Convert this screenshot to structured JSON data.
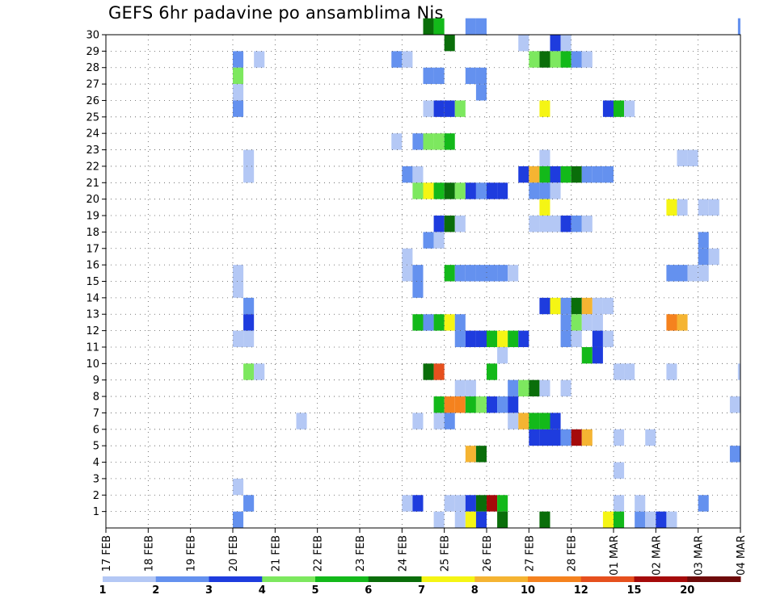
{
  "chart_data": {
    "type": "heatmap",
    "title": "GEFS 6hr padavine po ansamblima Nis",
    "xlabel": "",
    "ylabel": "",
    "x_tick_labels": [
      "17 FEB",
      "18 FEB",
      "19 FEB",
      "20 FEB",
      "21 FEB",
      "22 FEB",
      "23 FEB",
      "24 FEB",
      "25 FEB",
      "26 FEB",
      "27 FEB",
      "28 FEB",
      "01 MAR",
      "02 MAR",
      "03 MAR",
      "04 MAR"
    ],
    "y_tick_labels": [
      "1",
      "2",
      "3",
      "4",
      "5",
      "6",
      "7",
      "8",
      "9",
      "10",
      "11",
      "12",
      "13",
      "14",
      "15",
      "16",
      "17",
      "18",
      "19",
      "20",
      "21",
      "22",
      "23",
      "24",
      "25",
      "26",
      "27",
      "28",
      "29",
      "30"
    ],
    "x_range_days": [
      0,
      15
    ],
    "y_range": [
      0,
      30
    ],
    "grid": true,
    "legend_position": "bottom",
    "colorbar": {
      "labels": [
        "1",
        "2",
        "3",
        "4",
        "5",
        "6",
        "7",
        "8",
        "10",
        "12",
        "15",
        "20"
      ],
      "colors": [
        "#b4c8f5",
        "#6491ef",
        "#1e3cde",
        "#7de85f",
        "#13b91a",
        "#0a6e0a",
        "#f5f514",
        "#f5b432",
        "#f5821e",
        "#e6501e",
        "#a50a0a",
        "#6e0a0a"
      ]
    },
    "cell_width_days": 0.25,
    "cells": [
      [
        30,
        7.5,
        5
      ],
      [
        30,
        7.75,
        4
      ],
      [
        30,
        8.5,
        1
      ],
      [
        30,
        8.75,
        1
      ],
      [
        30,
        14.94,
        1
      ],
      [
        29,
        8.0,
        5
      ],
      [
        29,
        9.75,
        0
      ],
      [
        29,
        10.5,
        2
      ],
      [
        29,
        10.75,
        0
      ],
      [
        28,
        3.0,
        1
      ],
      [
        28,
        3.5,
        0
      ],
      [
        28,
        6.75,
        1
      ],
      [
        28,
        7.0,
        0
      ],
      [
        28,
        10.0,
        3
      ],
      [
        28,
        10.25,
        5
      ],
      [
        28,
        10.5,
        3
      ],
      [
        28,
        10.75,
        4
      ],
      [
        28,
        11.0,
        1
      ],
      [
        28,
        11.25,
        0
      ],
      [
        27,
        3.0,
        3
      ],
      [
        27,
        7.5,
        1
      ],
      [
        27,
        7.75,
        1
      ],
      [
        27,
        8.5,
        1
      ],
      [
        27,
        8.75,
        1
      ],
      [
        26,
        3.0,
        0
      ],
      [
        26,
        8.75,
        1
      ],
      [
        25,
        3.0,
        1
      ],
      [
        25,
        7.5,
        0
      ],
      [
        25,
        7.75,
        2
      ],
      [
        25,
        8.0,
        2
      ],
      [
        25,
        8.25,
        3
      ],
      [
        25,
        10.25,
        6
      ],
      [
        25,
        11.75,
        2
      ],
      [
        25,
        12.0,
        4
      ],
      [
        25,
        12.25,
        0
      ],
      [
        23,
        6.75,
        0
      ],
      [
        23,
        7.25,
        1
      ],
      [
        23,
        7.5,
        3
      ],
      [
        23,
        7.75,
        3
      ],
      [
        23,
        8.0,
        4
      ],
      [
        22,
        3.25,
        0
      ],
      [
        22,
        10.25,
        0
      ],
      [
        22,
        13.5,
        0
      ],
      [
        22,
        13.75,
        0
      ],
      [
        21,
        3.25,
        0
      ],
      [
        21,
        7.0,
        1
      ],
      [
        21,
        7.25,
        0
      ],
      [
        21,
        9.75,
        2
      ],
      [
        21,
        10.0,
        7
      ],
      [
        21,
        10.25,
        4
      ],
      [
        21,
        10.5,
        2
      ],
      [
        21,
        10.75,
        4
      ],
      [
        21,
        11.0,
        5
      ],
      [
        21,
        11.25,
        1
      ],
      [
        21,
        11.5,
        1
      ],
      [
        21,
        11.75,
        1
      ],
      [
        20,
        7.25,
        3
      ],
      [
        20,
        7.5,
        6
      ],
      [
        20,
        7.75,
        4
      ],
      [
        20,
        8.0,
        5
      ],
      [
        20,
        8.25,
        3
      ],
      [
        20,
        8.5,
        2
      ],
      [
        20,
        8.75,
        1
      ],
      [
        20,
        9.0,
        2
      ],
      [
        20,
        9.25,
        2
      ],
      [
        20,
        10.0,
        1
      ],
      [
        20,
        10.25,
        1
      ],
      [
        20,
        10.5,
        0
      ],
      [
        19,
        10.25,
        6
      ],
      [
        19,
        13.25,
        6
      ],
      [
        19,
        13.5,
        0
      ],
      [
        19,
        14.0,
        0
      ],
      [
        19,
        14.25,
        0
      ],
      [
        18,
        7.75,
        2
      ],
      [
        18,
        8.0,
        5
      ],
      [
        18,
        8.25,
        0
      ],
      [
        18,
        10.0,
        0
      ],
      [
        18,
        10.25,
        0
      ],
      [
        18,
        10.5,
        0
      ],
      [
        18,
        10.75,
        2
      ],
      [
        18,
        11.0,
        1
      ],
      [
        18,
        11.25,
        0
      ],
      [
        17,
        7.5,
        1
      ],
      [
        17,
        7.75,
        0
      ],
      [
        17,
        14.0,
        1
      ],
      [
        16,
        7.0,
        0
      ],
      [
        16,
        14.0,
        1
      ],
      [
        16,
        14.25,
        0
      ],
      [
        15,
        3.0,
        0
      ],
      [
        15,
        7.0,
        0
      ],
      [
        15,
        7.25,
        1
      ],
      [
        15,
        8.0,
        4
      ],
      [
        15,
        8.25,
        1
      ],
      [
        15,
        8.5,
        1
      ],
      [
        15,
        8.75,
        1
      ],
      [
        15,
        9.0,
        1
      ],
      [
        15,
        9.25,
        1
      ],
      [
        15,
        9.5,
        0
      ],
      [
        15,
        13.25,
        1
      ],
      [
        15,
        13.5,
        1
      ],
      [
        15,
        13.75,
        0
      ],
      [
        15,
        14.0,
        0
      ],
      [
        14,
        3.0,
        0
      ],
      [
        14,
        7.25,
        1
      ],
      [
        13,
        3.25,
        1
      ],
      [
        13,
        10.25,
        2
      ],
      [
        13,
        10.5,
        6
      ],
      [
        13,
        10.75,
        1
      ],
      [
        13,
        11.0,
        5
      ],
      [
        13,
        11.25,
        7
      ],
      [
        13,
        11.5,
        0
      ],
      [
        13,
        11.75,
        0
      ],
      [
        12,
        3.25,
        2
      ],
      [
        12,
        7.25,
        4
      ],
      [
        12,
        7.5,
        1
      ],
      [
        12,
        7.75,
        4
      ],
      [
        12,
        8.0,
        6
      ],
      [
        12,
        8.25,
        1
      ],
      [
        12,
        10.75,
        1
      ],
      [
        12,
        11.0,
        3
      ],
      [
        12,
        11.25,
        0
      ],
      [
        12,
        11.5,
        0
      ],
      [
        12,
        13.25,
        8
      ],
      [
        12,
        13.5,
        7
      ],
      [
        11,
        3.0,
        0
      ],
      [
        11,
        3.25,
        0
      ],
      [
        11,
        8.25,
        1
      ],
      [
        11,
        8.5,
        2
      ],
      [
        11,
        8.75,
        2
      ],
      [
        11,
        9.0,
        4
      ],
      [
        11,
        9.25,
        6
      ],
      [
        11,
        9.5,
        4
      ],
      [
        11,
        9.75,
        2
      ],
      [
        11,
        10.75,
        1
      ],
      [
        11,
        11.0,
        0
      ],
      [
        11,
        11.5,
        2
      ],
      [
        11,
        11.75,
        0
      ],
      [
        10,
        9.25,
        0
      ],
      [
        10,
        11.25,
        4
      ],
      [
        10,
        11.5,
        2
      ],
      [
        9,
        3.25,
        3
      ],
      [
        9,
        3.5,
        0
      ],
      [
        9,
        7.5,
        5
      ],
      [
        9,
        7.75,
        9
      ],
      [
        9,
        9.0,
        4
      ],
      [
        9,
        12.0,
        0
      ],
      [
        9,
        12.25,
        0
      ],
      [
        9,
        13.25,
        0
      ],
      [
        9,
        14.94,
        0
      ],
      [
        8,
        8.25,
        0
      ],
      [
        8,
        8.5,
        0
      ],
      [
        8,
        9.5,
        1
      ],
      [
        8,
        9.75,
        3
      ],
      [
        8,
        10.0,
        5
      ],
      [
        8,
        10.25,
        0
      ],
      [
        8,
        10.75,
        0
      ],
      [
        7,
        7.75,
        4
      ],
      [
        7,
        8.0,
        8
      ],
      [
        7,
        8.25,
        8
      ],
      [
        7,
        8.5,
        4
      ],
      [
        7,
        8.75,
        3
      ],
      [
        7,
        9.0,
        2
      ],
      [
        7,
        9.25,
        1
      ],
      [
        7,
        9.5,
        2
      ],
      [
        7,
        14.75,
        0
      ],
      [
        7,
        14.94,
        0
      ],
      [
        6,
        4.5,
        0
      ],
      [
        6,
        7.25,
        0
      ],
      [
        6,
        7.75,
        0
      ],
      [
        6,
        8.0,
        1
      ],
      [
        6,
        9.5,
        0
      ],
      [
        6,
        9.75,
        7
      ],
      [
        6,
        10.0,
        4
      ],
      [
        6,
        10.25,
        4
      ],
      [
        6,
        10.5,
        2
      ],
      [
        5,
        10.0,
        2
      ],
      [
        5,
        10.25,
        2
      ],
      [
        5,
        10.5,
        2
      ],
      [
        5,
        10.75,
        1
      ],
      [
        5,
        11.0,
        10
      ],
      [
        5,
        11.25,
        7
      ],
      [
        5,
        12.0,
        0
      ],
      [
        5,
        12.75,
        0
      ],
      [
        4,
        8.5,
        7
      ],
      [
        4,
        8.75,
        5
      ],
      [
        4,
        14.75,
        1
      ],
      [
        3,
        12.0,
        0
      ],
      [
        2,
        3.0,
        0
      ],
      [
        1,
        3.25,
        1
      ],
      [
        1,
        7.0,
        0
      ],
      [
        1,
        7.25,
        2
      ],
      [
        1,
        8.0,
        0
      ],
      [
        1,
        8.25,
        0
      ],
      [
        1,
        8.5,
        2
      ],
      [
        1,
        8.75,
        5
      ],
      [
        1,
        9.0,
        10
      ],
      [
        1,
        9.25,
        4
      ],
      [
        1,
        12.0,
        0
      ],
      [
        1,
        12.5,
        0
      ],
      [
        1,
        14.0,
        1
      ],
      [
        0,
        3.0,
        1
      ],
      [
        0,
        7.75,
        0
      ],
      [
        0,
        8.25,
        0
      ],
      [
        0,
        8.5,
        6
      ],
      [
        0,
        8.75,
        2
      ],
      [
        0,
        9.25,
        5
      ],
      [
        0,
        10.25,
        5
      ],
      [
        0,
        11.75,
        6
      ],
      [
        0,
        12.0,
        4
      ],
      [
        0,
        12.5,
        1
      ],
      [
        0,
        12.75,
        0
      ],
      [
        0,
        13.0,
        2
      ],
      [
        0,
        13.25,
        0
      ]
    ]
  }
}
